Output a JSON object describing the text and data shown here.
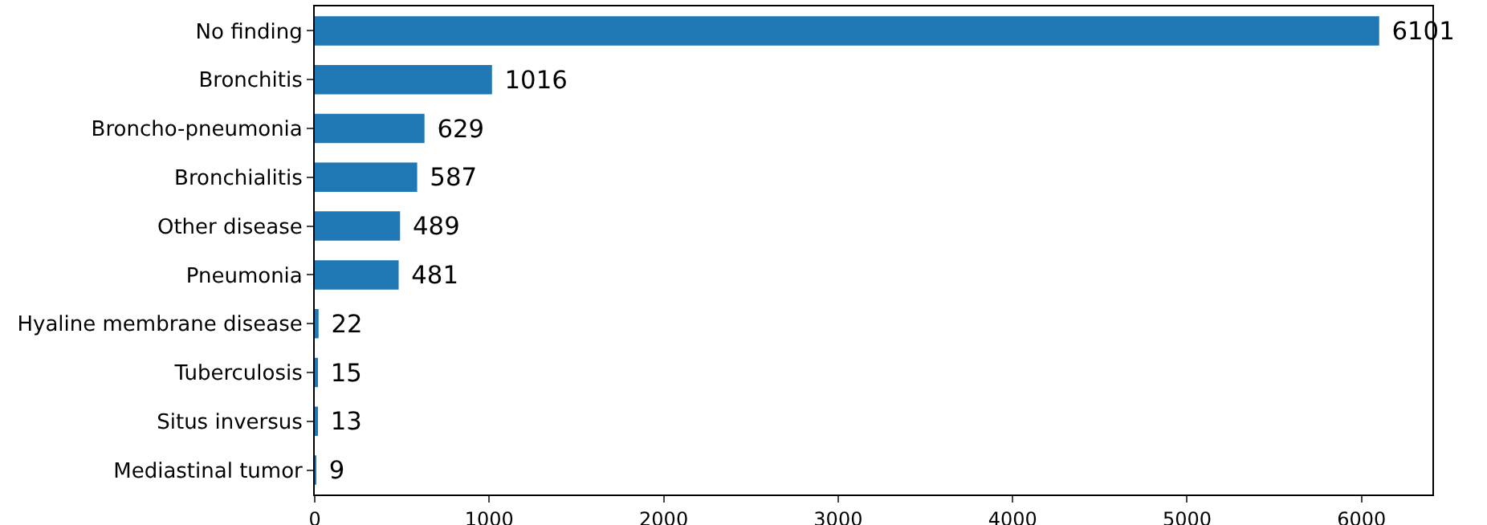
{
  "chart_data": {
    "type": "bar",
    "orientation": "horizontal",
    "categories": [
      "No finding",
      "Bronchitis",
      "Broncho-pneumonia",
      "Bronchialitis",
      "Other disease",
      "Pneumonia",
      "Hyaline membrane disease",
      "Tuberculosis",
      "Situs inversus",
      "Mediastinal tumor"
    ],
    "values": [
      6101,
      1016,
      629,
      587,
      489,
      481,
      22,
      15,
      13,
      9
    ],
    "color": "#1f77b4",
    "xlim": [
      0,
      6406
    ],
    "xticks": [
      0,
      1000,
      2000,
      3000,
      4000,
      5000,
      6000
    ],
    "data_labels": true,
    "grid": false
  }
}
